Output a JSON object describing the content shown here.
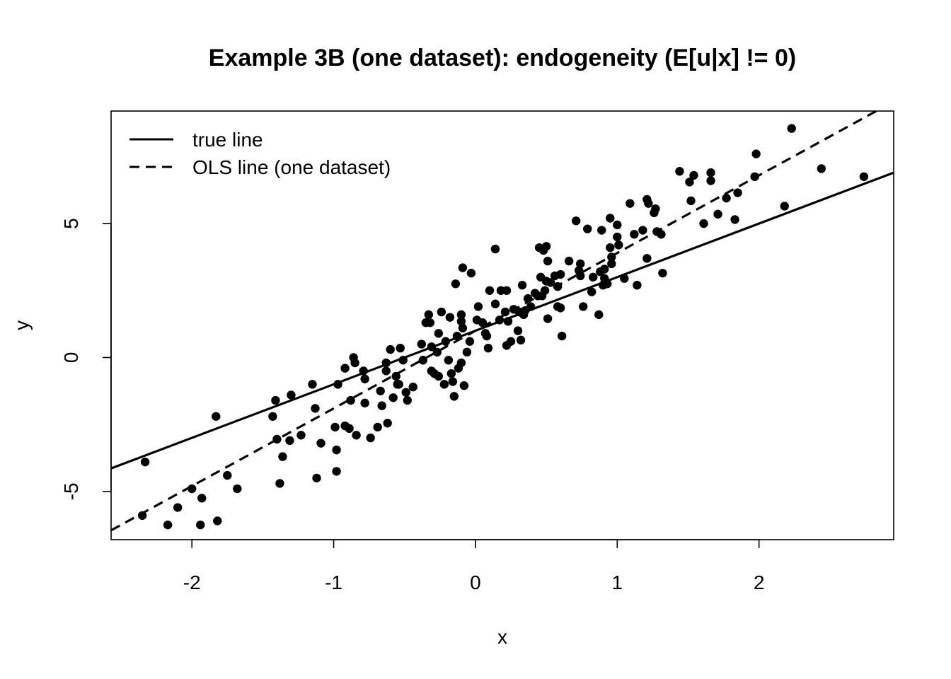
{
  "chart_data": {
    "type": "scatter",
    "title": "Example 3B (one dataset): endogeneity (E[u|x] != 0)",
    "xlabel": "x",
    "ylabel": "y",
    "xlim": [
      -2.57,
      2.95
    ],
    "ylim": [
      -6.8,
      9.2
    ],
    "xticks": [
      -2,
      -1,
      0,
      1,
      2
    ],
    "yticks": [
      -5,
      0,
      5
    ],
    "xtick_labels": [
      "-2",
      "-1",
      "0",
      "1",
      "2"
    ],
    "ytick_labels": [
      "-5",
      "0",
      "5"
    ],
    "grid": false,
    "legend_position": "top-left",
    "legend": [
      {
        "label": "true line",
        "style": "solid"
      },
      {
        "label": "OLS line (one dataset)",
        "style": "dashed"
      }
    ],
    "lines": [
      {
        "name": "true line",
        "style": "solid",
        "intercept": 1.0,
        "slope": 2.0
      },
      {
        "name": "OLS line (one dataset)",
        "style": "dashed",
        "intercept": 1.0,
        "slope": 2.9
      }
    ],
    "points": [
      [
        -2.35,
        -5.9
      ],
      [
        -2.33,
        -3.9
      ],
      [
        -2.17,
        -6.25
      ],
      [
        -2.1,
        -5.6
      ],
      [
        -2.0,
        -4.9
      ],
      [
        -1.93,
        -5.25
      ],
      [
        -1.94,
        -6.25
      ],
      [
        -1.82,
        -6.1
      ],
      [
        -1.83,
        -2.2
      ],
      [
        -1.75,
        -4.4
      ],
      [
        -1.68,
        -4.9
      ],
      [
        -1.43,
        -2.2
      ],
      [
        -1.4,
        -3.05
      ],
      [
        -1.41,
        -1.6
      ],
      [
        -1.38,
        -4.7
      ],
      [
        -1.36,
        -3.7
      ],
      [
        -1.31,
        -3.1
      ],
      [
        -1.3,
        -1.4
      ],
      [
        -1.23,
        -2.9
      ],
      [
        -1.15,
        -1.0
      ],
      [
        -1.13,
        -1.9
      ],
      [
        -1.12,
        -4.5
      ],
      [
        -1.09,
        -3.2
      ],
      [
        -0.99,
        -2.6
      ],
      [
        -0.98,
        -3.45
      ],
      [
        -0.98,
        -4.25
      ],
      [
        -0.97,
        -1.0
      ],
      [
        -0.92,
        -0.4
      ],
      [
        -0.92,
        -2.55
      ],
      [
        -0.88,
        -1.6
      ],
      [
        -0.89,
        -2.65
      ],
      [
        -0.86,
        0.0
      ],
      [
        -0.85,
        -0.2
      ],
      [
        -0.84,
        -2.9
      ],
      [
        -0.79,
        -0.5
      ],
      [
        -0.78,
        -0.8
      ],
      [
        -0.78,
        -1.7
      ],
      [
        -0.74,
        -3.0
      ],
      [
        -0.69,
        -2.6
      ],
      [
        -0.67,
        -1.25
      ],
      [
        -0.66,
        -1.8
      ],
      [
        -0.63,
        -0.2
      ],
      [
        -0.63,
        -0.5
      ],
      [
        -0.62,
        -2.45
      ],
      [
        -0.6,
        0.3
      ],
      [
        -0.58,
        -1.5
      ],
      [
        -0.56,
        -0.7
      ],
      [
        -0.55,
        -1.0
      ],
      [
        -0.54,
        -1.0
      ],
      [
        -0.53,
        0.35
      ],
      [
        -0.51,
        -0.1
      ],
      [
        -0.49,
        -1.3
      ],
      [
        -0.48,
        -1.6
      ],
      [
        -0.44,
        -1.1
      ],
      [
        -0.38,
        0.5
      ],
      [
        -0.37,
        -0.1
      ],
      [
        -0.35,
        1.3
      ],
      [
        -0.33,
        1.6
      ],
      [
        -0.32,
        1.3
      ],
      [
        -0.31,
        0.4
      ],
      [
        -0.31,
        -0.5
      ],
      [
        -0.29,
        -0.6
      ],
      [
        -0.27,
        0.2
      ],
      [
        -0.26,
        0.9
      ],
      [
        -0.26,
        -0.7
      ],
      [
        -0.24,
        1.7
      ],
      [
        -0.21,
        0.6
      ],
      [
        -0.22,
        -1.0
      ],
      [
        -0.19,
        -0.1
      ],
      [
        -0.18,
        1.5
      ],
      [
        -0.17,
        -0.6
      ],
      [
        -0.16,
        -0.9
      ],
      [
        -0.15,
        -1.45
      ],
      [
        -0.14,
        2.75
      ],
      [
        -0.13,
        0.8
      ],
      [
        -0.12,
        -0.4
      ],
      [
        -0.1,
        1.6
      ],
      [
        -0.1,
        1.35
      ],
      [
        -0.09,
        1.1
      ],
      [
        -0.1,
        -0.2
      ],
      [
        -0.09,
        3.35
      ],
      [
        -0.08,
        -1.05
      ],
      [
        -0.06,
        0.2
      ],
      [
        -0.04,
        0.6
      ],
      [
        -0.03,
        3.15
      ],
      [
        0.01,
        1.4
      ],
      [
        0.02,
        1.9
      ],
      [
        0.05,
        1.3
      ],
      [
        0.07,
        0.9
      ],
      [
        0.08,
        0.8
      ],
      [
        0.09,
        0.35
      ],
      [
        0.1,
        2.5
      ],
      [
        0.14,
        4.05
      ],
      [
        0.14,
        2.0
      ],
      [
        0.17,
        1.4
      ],
      [
        0.18,
        2.5
      ],
      [
        0.21,
        1.7
      ],
      [
        0.22,
        2.5
      ],
      [
        0.22,
        0.45
      ],
      [
        0.23,
        1.35
      ],
      [
        0.25,
        0.6
      ],
      [
        0.27,
        1.8
      ],
      [
        0.3,
        1.0
      ],
      [
        0.31,
        1.7
      ],
      [
        0.32,
        0.65
      ],
      [
        0.33,
        2.7
      ],
      [
        0.34,
        1.6
      ],
      [
        0.35,
        1.75
      ],
      [
        0.37,
        2.2
      ],
      [
        0.39,
        1.9
      ],
      [
        0.42,
        2.4
      ],
      [
        0.44,
        2.3
      ],
      [
        0.45,
        4.1
      ],
      [
        0.46,
        3.0
      ],
      [
        0.47,
        2.3
      ],
      [
        0.48,
        4.0
      ],
      [
        0.49,
        2.5
      ],
      [
        0.5,
        4.15
      ],
      [
        0.5,
        2.85
      ],
      [
        0.51,
        3.6
      ],
      [
        0.51,
        1.45
      ],
      [
        0.53,
        2.8
      ],
      [
        0.56,
        3.05
      ],
      [
        0.58,
        2.65
      ],
      [
        0.58,
        1.9
      ],
      [
        0.6,
        1.85
      ],
      [
        0.6,
        3.1
      ],
      [
        0.61,
        0.8
      ],
      [
        0.66,
        3.6
      ],
      [
        0.71,
        5.1
      ],
      [
        0.73,
        3.25
      ],
      [
        0.74,
        3.5
      ],
      [
        0.74,
        3.05
      ],
      [
        0.76,
        1.9
      ],
      [
        0.79,
        4.8
      ],
      [
        0.82,
        2.45
      ],
      [
        0.83,
        3.0
      ],
      [
        0.87,
        1.6
      ],
      [
        0.88,
        3.2
      ],
      [
        0.89,
        4.75
      ],
      [
        0.9,
        2.7
      ],
      [
        0.91,
        3.3
      ],
      [
        0.91,
        2.95
      ],
      [
        0.93,
        2.75
      ],
      [
        0.95,
        5.2
      ],
      [
        0.95,
        4.1
      ],
      [
        0.96,
        3.75
      ],
      [
        0.96,
        3.5
      ],
      [
        1.0,
        4.5
      ],
      [
        1.01,
        4.2
      ],
      [
        1.0,
        4.95
      ],
      [
        1.05,
        2.95
      ],
      [
        1.09,
        5.75
      ],
      [
        1.12,
        4.6
      ],
      [
        1.14,
        2.7
      ],
      [
        1.18,
        4.75
      ],
      [
        1.21,
        5.9
      ],
      [
        1.22,
        5.75
      ],
      [
        1.21,
        3.7
      ],
      [
        1.26,
        5.4
      ],
      [
        1.27,
        5.55
      ],
      [
        1.28,
        4.7
      ],
      [
        1.31,
        4.6
      ],
      [
        1.32,
        3.15
      ],
      [
        1.44,
        6.95
      ],
      [
        1.51,
        6.55
      ],
      [
        1.52,
        5.85
      ],
      [
        1.54,
        6.8
      ],
      [
        1.61,
        5.0
      ],
      [
        1.66,
        6.9
      ],
      [
        1.66,
        6.6
      ],
      [
        1.71,
        5.35
      ],
      [
        1.77,
        5.95
      ],
      [
        1.83,
        5.15
      ],
      [
        1.85,
        6.15
      ],
      [
        1.97,
        6.75
      ],
      [
        1.98,
        7.6
      ],
      [
        2.18,
        5.65
      ],
      [
        2.23,
        8.55
      ],
      [
        2.44,
        7.05
      ],
      [
        2.74,
        6.75
      ]
    ]
  }
}
